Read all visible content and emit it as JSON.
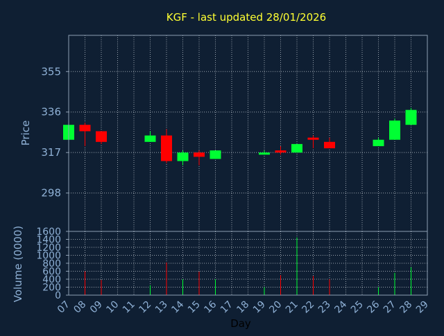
{
  "chart_data": {
    "type": "candlestick",
    "title": "KGF - last updated 28/01/2026",
    "price_panel": {
      "ylabel": "Price",
      "ylim": [
        280,
        372
      ],
      "yticks": [
        298,
        317,
        336,
        355
      ],
      "grid": true
    },
    "volume_panel": {
      "ylabel": "Volume (0000)",
      "ylim": [
        0,
        1600
      ],
      "yticks": [
        0,
        200,
        400,
        600,
        800,
        1000,
        1200,
        1400,
        1600
      ],
      "grid": true
    },
    "xlabel": "Day",
    "x_ticks": [
      "07",
      "08",
      "09",
      "10",
      "11",
      "12",
      "13",
      "14",
      "15",
      "16",
      "17",
      "18",
      "19",
      "20",
      "21",
      "22",
      "23",
      "24",
      "25",
      "26",
      "27",
      "28",
      "29"
    ],
    "x_range": [
      7,
      29
    ],
    "candles": [
      {
        "day": 7,
        "open": 323,
        "high": 330,
        "low": 323,
        "close": 330,
        "volume": 0
      },
      {
        "day": 8,
        "open": 330,
        "high": 331,
        "low": 320,
        "close": 327,
        "volume": 600
      },
      {
        "day": 9,
        "open": 327,
        "high": 327,
        "low": 321,
        "close": 322,
        "volume": 380
      },
      {
        "day": 12,
        "open": 322,
        "high": 327,
        "low": 322,
        "close": 325,
        "volume": 250
      },
      {
        "day": 13,
        "open": 325,
        "high": 328,
        "low": 312,
        "close": 313,
        "volume": 820
      },
      {
        "day": 14,
        "open": 313,
        "high": 318,
        "low": 311,
        "close": 317,
        "volume": 400
      },
      {
        "day": 15,
        "open": 317,
        "high": 318,
        "low": 311,
        "close": 315,
        "volume": 590
      },
      {
        "day": 16,
        "open": 314,
        "high": 318,
        "low": 314,
        "close": 318,
        "volume": 400
      },
      {
        "day": 19,
        "open": 316,
        "high": 318,
        "low": 316,
        "close": 317,
        "volume": 200
      },
      {
        "day": 20,
        "open": 318,
        "high": 320,
        "low": 316,
        "close": 317,
        "volume": 500
      },
      {
        "day": 21,
        "open": 317,
        "high": 321,
        "low": 317,
        "close": 321,
        "volume": 1450
      },
      {
        "day": 22,
        "open": 324,
        "high": 325,
        "low": 319,
        "close": 323,
        "volume": 480
      },
      {
        "day": 23,
        "open": 322,
        "high": 324,
        "low": 319,
        "close": 319,
        "volume": 400
      },
      {
        "day": 26,
        "open": 320,
        "high": 324,
        "low": 320,
        "close": 323,
        "volume": 200
      },
      {
        "day": 27,
        "open": 323,
        "high": 333,
        "low": 323,
        "close": 332,
        "volume": 560
      },
      {
        "day": 28,
        "open": 330,
        "high": 338,
        "low": 330,
        "close": 337,
        "volume": 700
      }
    ],
    "colors": {
      "background": "#0f1f33",
      "axis": "#8e9fb3",
      "grid": "#c8d0d8",
      "tick_label": "#8fb1d6",
      "title": "#ffff33",
      "up": "#00ff33",
      "down": "#ff0000"
    }
  }
}
